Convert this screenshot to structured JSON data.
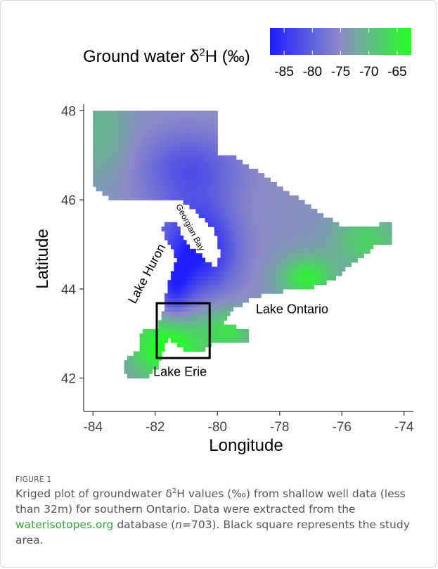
{
  "chart_data": {
    "type": "heatmap",
    "xlabel": "Longitude",
    "ylabel": "Latitude",
    "xlim": [
      -84.3,
      -73.7
    ],
    "ylim": [
      41.25,
      48.15
    ],
    "x_ticks": [
      -84,
      -82,
      -80,
      -78,
      -76,
      -74
    ],
    "y_ticks": [
      42,
      44,
      46,
      48
    ],
    "grid": false,
    "legend": {
      "title_prefix": "Ground water δ",
      "title_sup": "2",
      "title_suffix": "H (‰)",
      "ticks": [
        -85,
        -80,
        -75,
        -70,
        -65
      ],
      "range": [
        -87.5,
        -62.5
      ],
      "low_color": "#1f1fff",
      "mid_color": "#8c8cc8",
      "high_color": "#22ff22"
    },
    "annotations": [
      {
        "text": "Georgian Bay",
        "lon": -80.95,
        "lat": 45.35,
        "rotation": 62,
        "size": "small"
      },
      {
        "text": "Lake Huron",
        "lon": -82.15,
        "lat": 44.3,
        "rotation": -62,
        "size": "large"
      },
      {
        "text": "Lake Ontario",
        "lon": -77.6,
        "lat": 43.45,
        "rotation": 0,
        "size": "large"
      },
      {
        "text": "Lake Erie",
        "lon": -81.2,
        "lat": 42.05,
        "rotation": 0,
        "size": "large"
      }
    ],
    "study_area": {
      "lon": [
        -81.95,
        -80.25
      ],
      "lat": [
        42.45,
        43.68
      ]
    }
  },
  "caption": {
    "label": "FIGURE 1",
    "line1": "Kriged plot of groundwater δ",
    "sup": "2",
    "line2": "H values (‰) from shallow well data (less than 32m) for southern Ontario. Data were extracted from the ",
    "link": "waterisotopes.org",
    "line3": " database (",
    "n_italic": "n",
    "n_value": "=703). Black square represents the study area."
  }
}
